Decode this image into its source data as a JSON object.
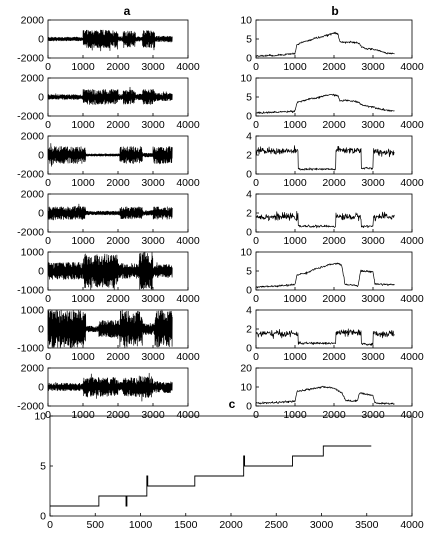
{
  "figure": {
    "labels": {
      "a": "a",
      "b": "b",
      "c": "c"
    }
  },
  "chart_data": [
    {
      "id": "a1",
      "type": "line",
      "ylim": [
        -2000,
        2000
      ],
      "xlim": [
        0,
        4000
      ],
      "yticks": [
        -2000,
        0,
        2000
      ],
      "xticks": [
        0,
        1000,
        2000,
        3000,
        4000
      ],
      "yticklabels": [
        "-2000",
        "0",
        "2000"
      ],
      "xticklabels": [
        "0",
        "1000",
        "2000",
        "3000",
        "4000"
      ],
      "segments": [
        [
          0,
          1000,
          200
        ],
        [
          1000,
          2000,
          950
        ],
        [
          2000,
          2150,
          250
        ],
        [
          2150,
          2500,
          850
        ],
        [
          2500,
          2700,
          250
        ],
        [
          2700,
          3050,
          900
        ],
        [
          3050,
          3550,
          300
        ]
      ]
    },
    {
      "id": "a2",
      "type": "line",
      "ylim": [
        -2000,
        2000
      ],
      "xlim": [
        0,
        4000
      ],
      "yticks": [
        -2000,
        0,
        2000
      ],
      "xticks": [
        0,
        1000,
        2000,
        3000,
        4000
      ],
      "yticklabels": [
        "-2000",
        "0",
        "2000"
      ],
      "xticklabels": [
        "0",
        "1000",
        "2000",
        "3000",
        "4000"
      ],
      "segments": [
        [
          0,
          1000,
          250
        ],
        [
          1000,
          2000,
          800
        ],
        [
          2000,
          2150,
          300
        ],
        [
          2150,
          2500,
          750
        ],
        [
          2500,
          2700,
          300
        ],
        [
          2700,
          3050,
          800
        ],
        [
          3050,
          3550,
          400
        ]
      ]
    },
    {
      "id": "a3",
      "type": "line",
      "ylim": [
        -2000,
        2000
      ],
      "xlim": [
        0,
        4000
      ],
      "yticks": [
        -2000,
        0,
        2000
      ],
      "xticks": [
        0,
        1000,
        2000,
        3000,
        4000
      ],
      "yticklabels": [
        "-2000",
        "0",
        "2000"
      ],
      "xticklabels": [
        "0",
        "1000",
        "2000",
        "3000",
        "4000"
      ],
      "segments": [
        [
          0,
          1080,
          900
        ],
        [
          1080,
          2050,
          120
        ],
        [
          2050,
          2700,
          900
        ],
        [
          2700,
          3000,
          200
        ],
        [
          3000,
          3550,
          900
        ]
      ]
    },
    {
      "id": "a4",
      "type": "line",
      "ylim": [
        -2000,
        2000
      ],
      "xlim": [
        0,
        4000
      ],
      "yticks": [
        -2000,
        0,
        2000
      ],
      "xticks": [
        0,
        1000,
        2000,
        3000,
        4000
      ],
      "yticklabels": [
        "-2000",
        "0",
        "2000"
      ],
      "xticklabels": [
        "0",
        "1000",
        "2000",
        "3000",
        "4000"
      ],
      "segments": [
        [
          0,
          1080,
          700
        ],
        [
          1080,
          2050,
          200
        ],
        [
          2050,
          2700,
          650
        ],
        [
          2700,
          3000,
          250
        ],
        [
          3000,
          3550,
          650
        ]
      ]
    },
    {
      "id": "a5",
      "type": "line",
      "ylim": [
        -1000,
        1000
      ],
      "xlim": [
        0,
        4000
      ],
      "yticks": [
        -1000,
        0,
        1000
      ],
      "xticks": [
        0,
        1000,
        2000,
        3000,
        4000
      ],
      "yticklabels": [
        "-1000",
        "0",
        "1000"
      ],
      "xticklabels": [
        "0",
        "1000",
        "2000",
        "3000",
        "4000"
      ],
      "segments": [
        [
          0,
          1000,
          450
        ],
        [
          1000,
          2000,
          900
        ],
        [
          2000,
          2600,
          400
        ],
        [
          2600,
          3000,
          1000
        ],
        [
          3000,
          3550,
          350
        ]
      ]
    },
    {
      "id": "a6",
      "type": "line",
      "ylim": [
        -1000,
        1000
      ],
      "xlim": [
        0,
        4000
      ],
      "yticks": [
        -1000,
        0,
        1000
      ],
      "xticks": [
        0,
        1000,
        2000,
        3000,
        4000
      ],
      "yticklabels": [
        "-1000",
        "0",
        "1000"
      ],
      "xticklabels": [
        "0",
        "1000",
        "2000",
        "3000",
        "4000"
      ],
      "segments": [
        [
          0,
          1080,
          1000
        ],
        [
          1080,
          1450,
          150
        ],
        [
          1450,
          2050,
          450
        ],
        [
          2050,
          2700,
          950
        ],
        [
          2700,
          3050,
          300
        ],
        [
          3050,
          3550,
          950
        ]
      ]
    },
    {
      "id": "a7",
      "type": "line",
      "ylim": [
        -2000,
        2000
      ],
      "xlim": [
        0,
        4000
      ],
      "yticks": [
        -2000,
        0,
        2000
      ],
      "xticks": [
        0,
        1000,
        2000,
        3000,
        4000
      ],
      "yticklabels": [
        "-2000",
        "0",
        "2000"
      ],
      "xticklabels": [
        "0",
        "1000",
        "2000",
        "3000",
        "4000"
      ],
      "segments": [
        [
          0,
          1000,
          400
        ],
        [
          1000,
          2000,
          1000
        ],
        [
          2000,
          2150,
          500
        ],
        [
          2150,
          2600,
          1000
        ],
        [
          2600,
          3000,
          1100
        ],
        [
          3000,
          3550,
          600
        ]
      ]
    },
    {
      "id": "b1",
      "type": "line",
      "ylim": [
        0,
        10
      ],
      "xlim": [
        0,
        4000
      ],
      "yticks": [
        0,
        5,
        10
      ],
      "xticks": [
        0,
        1000,
        2000,
        3000,
        4000
      ],
      "yticklabels": [
        "0",
        "5",
        "10"
      ],
      "xticklabels": [
        "0",
        "1000",
        "2000",
        "3000",
        "4000"
      ],
      "points": [
        [
          0,
          0.5
        ],
        [
          500,
          0.7
        ],
        [
          1000,
          1.2
        ],
        [
          1050,
          3.5
        ],
        [
          1200,
          4.2
        ],
        [
          1400,
          4.7
        ],
        [
          1500,
          5.2
        ],
        [
          1700,
          5.6
        ],
        [
          1900,
          6.2
        ],
        [
          2000,
          6.6
        ],
        [
          2100,
          6.3
        ],
        [
          2150,
          4.3
        ],
        [
          2300,
          4.2
        ],
        [
          2500,
          4.1
        ],
        [
          2650,
          3.8
        ],
        [
          2700,
          3.0
        ],
        [
          2800,
          2.5
        ],
        [
          3000,
          2.3
        ],
        [
          3100,
          2.1
        ],
        [
          3300,
          1.4
        ],
        [
          3550,
          1.1
        ]
      ]
    },
    {
      "id": "b2",
      "type": "line",
      "ylim": [
        0,
        10
      ],
      "xlim": [
        0,
        4000
      ],
      "yticks": [
        0,
        5,
        10
      ],
      "xticks": [
        0,
        1000,
        2000,
        3000,
        4000
      ],
      "yticklabels": [
        "0",
        "5",
        "10"
      ],
      "xticklabels": [
        "0",
        "1000",
        "2000",
        "3000",
        "4000"
      ],
      "points": [
        [
          0,
          0.8
        ],
        [
          500,
          1.0
        ],
        [
          1000,
          1.3
        ],
        [
          1050,
          3.6
        ],
        [
          1200,
          4.0
        ],
        [
          1400,
          4.5
        ],
        [
          1600,
          4.8
        ],
        [
          1800,
          5.5
        ],
        [
          2000,
          5.6
        ],
        [
          2100,
          5.3
        ],
        [
          2150,
          4.0
        ],
        [
          2300,
          4.1
        ],
        [
          2500,
          3.9
        ],
        [
          2650,
          3.6
        ],
        [
          2700,
          3.0
        ],
        [
          2800,
          2.7
        ],
        [
          3000,
          2.4
        ],
        [
          3100,
          2.1
        ],
        [
          3300,
          1.6
        ],
        [
          3550,
          1.3
        ]
      ]
    },
    {
      "id": "b3",
      "type": "line",
      "ylim": [
        0,
        4
      ],
      "xlim": [
        0,
        4000
      ],
      "yticks": [
        0,
        2,
        4
      ],
      "xticks": [
        0,
        1000,
        2000,
        3000,
        4000
      ],
      "yticklabels": [
        "0",
        "2",
        "4"
      ],
      "xticklabels": [
        "0",
        "1000",
        "2000",
        "3000",
        "4000"
      ],
      "levels": [
        [
          0,
          1080,
          2.4
        ],
        [
          1080,
          2050,
          0.5
        ],
        [
          2050,
          2700,
          2.5
        ],
        [
          2700,
          3000,
          0.6
        ],
        [
          3000,
          3550,
          2.3
        ]
      ]
    },
    {
      "id": "b4",
      "type": "line",
      "ylim": [
        0,
        4
      ],
      "xlim": [
        0,
        4000
      ],
      "yticks": [
        0,
        2,
        4
      ],
      "xticks": [
        0,
        1000,
        2000,
        3000,
        4000
      ],
      "yticklabels": [
        "0",
        "2",
        "4"
      ],
      "xticklabels": [
        "0",
        "1000",
        "2000",
        "3000",
        "4000"
      ],
      "levels": [
        [
          0,
          1080,
          1.6
        ],
        [
          1080,
          2050,
          0.6
        ],
        [
          2050,
          2700,
          1.6
        ],
        [
          2700,
          3000,
          0.6
        ],
        [
          3000,
          3550,
          1.6
        ]
      ]
    },
    {
      "id": "b5",
      "type": "line",
      "ylim": [
        0,
        10
      ],
      "xlim": [
        0,
        4000
      ],
      "yticks": [
        0,
        5,
        10
      ],
      "xticks": [
        0,
        1000,
        2000,
        3000,
        4000
      ],
      "yticklabels": [
        "0",
        "5",
        "10"
      ],
      "xticklabels": [
        "0",
        "1000",
        "2000",
        "3000",
        "4000"
      ],
      "points": [
        [
          0,
          0.8
        ],
        [
          500,
          1.0
        ],
        [
          1000,
          1.4
        ],
        [
          1050,
          4.0
        ],
        [
          1300,
          4.5
        ],
        [
          1500,
          5.5
        ],
        [
          1700,
          6.0
        ],
        [
          1900,
          6.7
        ],
        [
          2100,
          7.0
        ],
        [
          2200,
          6.5
        ],
        [
          2280,
          1.5
        ],
        [
          2500,
          1.3
        ],
        [
          2620,
          1.2
        ],
        [
          2680,
          5.0
        ],
        [
          3000,
          4.8
        ],
        [
          3050,
          1.6
        ],
        [
          3550,
          1.4
        ]
      ]
    },
    {
      "id": "b6",
      "type": "line",
      "ylim": [
        0,
        4
      ],
      "xlim": [
        0,
        4000
      ],
      "yticks": [
        0,
        2,
        4
      ],
      "xticks": [
        0,
        1000,
        2000,
        3000,
        4000
      ],
      "yticklabels": [
        "0",
        "2",
        "4"
      ],
      "xticklabels": [
        "0",
        "1000",
        "2000",
        "3000",
        "4000"
      ],
      "levels": [
        [
          0,
          1080,
          1.5
        ],
        [
          1080,
          2050,
          0.5
        ],
        [
          2050,
          2700,
          1.6
        ],
        [
          2700,
          3000,
          0.4
        ],
        [
          3000,
          3550,
          1.5
        ]
      ]
    },
    {
      "id": "b7",
      "type": "line",
      "ylim": [
        0,
        20
      ],
      "xlim": [
        0,
        4000
      ],
      "yticks": [
        0,
        10,
        20
      ],
      "xticks": [
        0,
        1000,
        2000,
        3000,
        4000
      ],
      "yticklabels": [
        "0",
        "10",
        "20"
      ],
      "xticklabels": [
        "0",
        "1000",
        "2000",
        "3000",
        "4000"
      ],
      "points": [
        [
          0,
          1.5
        ],
        [
          500,
          1.8
        ],
        [
          1000,
          2.5
        ],
        [
          1050,
          7.5
        ],
        [
          1400,
          9.0
        ],
        [
          1700,
          10.0
        ],
        [
          2000,
          9.5
        ],
        [
          2200,
          7.0
        ],
        [
          2300,
          3.0
        ],
        [
          2500,
          2.5
        ],
        [
          2600,
          2.8
        ],
        [
          2650,
          7.0
        ],
        [
          3000,
          5.5
        ],
        [
          3050,
          1.5
        ],
        [
          3550,
          1.2
        ]
      ]
    },
    {
      "id": "c",
      "type": "line",
      "ylim": [
        0,
        10
      ],
      "xlim": [
        0,
        4000
      ],
      "yticks": [
        0,
        5,
        10
      ],
      "xticks": [
        0,
        500,
        1000,
        1500,
        2000,
        2500,
        3000,
        3500,
        4000
      ],
      "yticklabels": [
        "0",
        "5",
        "10"
      ],
      "xticklabels": [
        "0",
        "500",
        "1000",
        "1500",
        "2000",
        "2500",
        "3000",
        "3500",
        "4000"
      ],
      "points": [
        [
          0,
          1
        ],
        [
          540,
          1
        ],
        [
          540,
          2
        ],
        [
          840,
          2
        ],
        [
          840,
          1
        ],
        [
          850,
          1
        ],
        [
          850,
          2
        ],
        [
          1070,
          2
        ],
        [
          1070,
          4
        ],
        [
          1080,
          4
        ],
        [
          1080,
          3
        ],
        [
          1600,
          3
        ],
        [
          1600,
          4
        ],
        [
          2140,
          4
        ],
        [
          2140,
          6
        ],
        [
          2150,
          6
        ],
        [
          2150,
          5
        ],
        [
          2680,
          5
        ],
        [
          2680,
          6
        ],
        [
          3020,
          6
        ],
        [
          3020,
          7
        ],
        [
          3550,
          7
        ]
      ]
    }
  ]
}
